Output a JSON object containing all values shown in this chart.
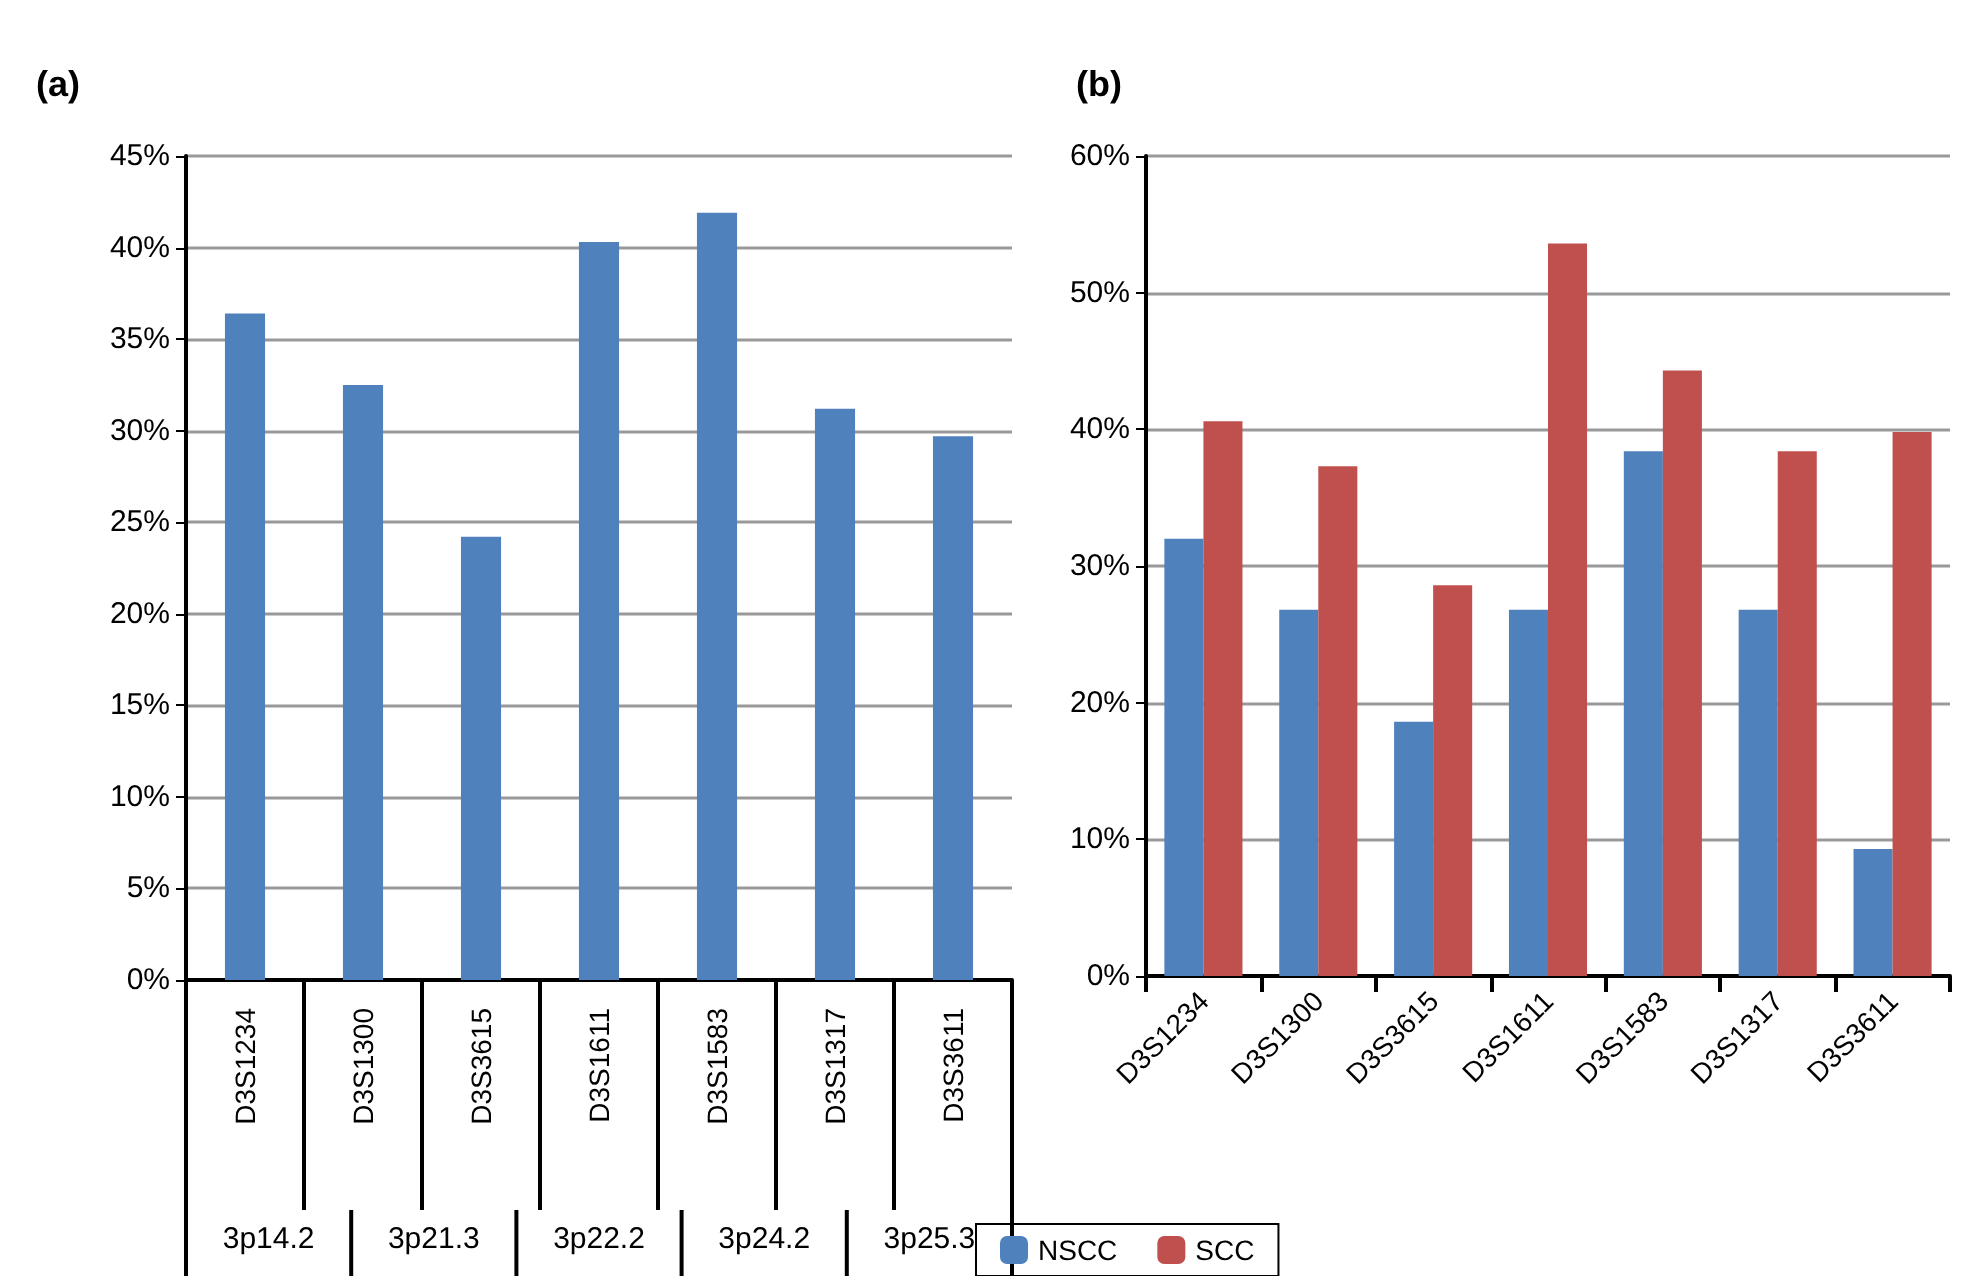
{
  "chart_data": [
    {
      "type": "bar",
      "title": "(a)",
      "categories": [
        "D3S1234",
        "D3S1300",
        "D3S3615",
        "D3S1611",
        "D3S1583",
        "D3S1317",
        "D3S3611"
      ],
      "series": [
        {
          "color": "#4f81bd",
          "values": [
            36.4,
            32.5,
            24.2,
            40.3,
            41.9,
            31.2,
            29.7
          ]
        }
      ],
      "ylim": [
        0,
        45
      ],
      "yticks": [
        {
          "value": 0,
          "label": "0%"
        },
        {
          "value": 5,
          "label": "5%"
        },
        {
          "value": 10,
          "label": "10%"
        },
        {
          "value": 15,
          "label": "15%"
        },
        {
          "value": 20,
          "label": "20%"
        },
        {
          "value": 25,
          "label": "25%"
        },
        {
          "value": 30,
          "label": "30%"
        },
        {
          "value": 35,
          "label": "35%"
        },
        {
          "value": 40,
          "label": "40%"
        },
        {
          "value": 45,
          "label": "45%"
        }
      ],
      "annotations": [
        "3p14.2",
        "3p21.3",
        "3p22.2",
        "3p24.2",
        "3p25.3"
      ],
      "grid": "y",
      "legend": false
    },
    {
      "type": "bar",
      "title": "(b)",
      "categories": [
        "D3S1234",
        "D3S1300",
        "D3S3615",
        "D3S1611",
        "D3S1583",
        "D3S1317",
        "D3S3611"
      ],
      "series": [
        {
          "name": "NSCC",
          "color": "#4f81bd",
          "values": [
            32,
            26.8,
            18.6,
            26.8,
            38.4,
            26.8,
            9.3
          ]
        },
        {
          "name": "SCC",
          "color": "#c0504d",
          "values": [
            40.6,
            37.3,
            28.6,
            53.6,
            44.3,
            38.4,
            39.8
          ]
        }
      ],
      "ylim": [
        0,
        60
      ],
      "yticks": [
        {
          "value": 0,
          "label": "0%"
        },
        {
          "value": 10,
          "label": "10%"
        },
        {
          "value": 20,
          "label": "20%"
        },
        {
          "value": 30,
          "label": "30%"
        },
        {
          "value": 40,
          "label": "40%"
        },
        {
          "value": 50,
          "label": "50%"
        },
        {
          "value": 60,
          "label": "60%"
        }
      ],
      "grid": "y",
      "legend": "bottom"
    }
  ]
}
